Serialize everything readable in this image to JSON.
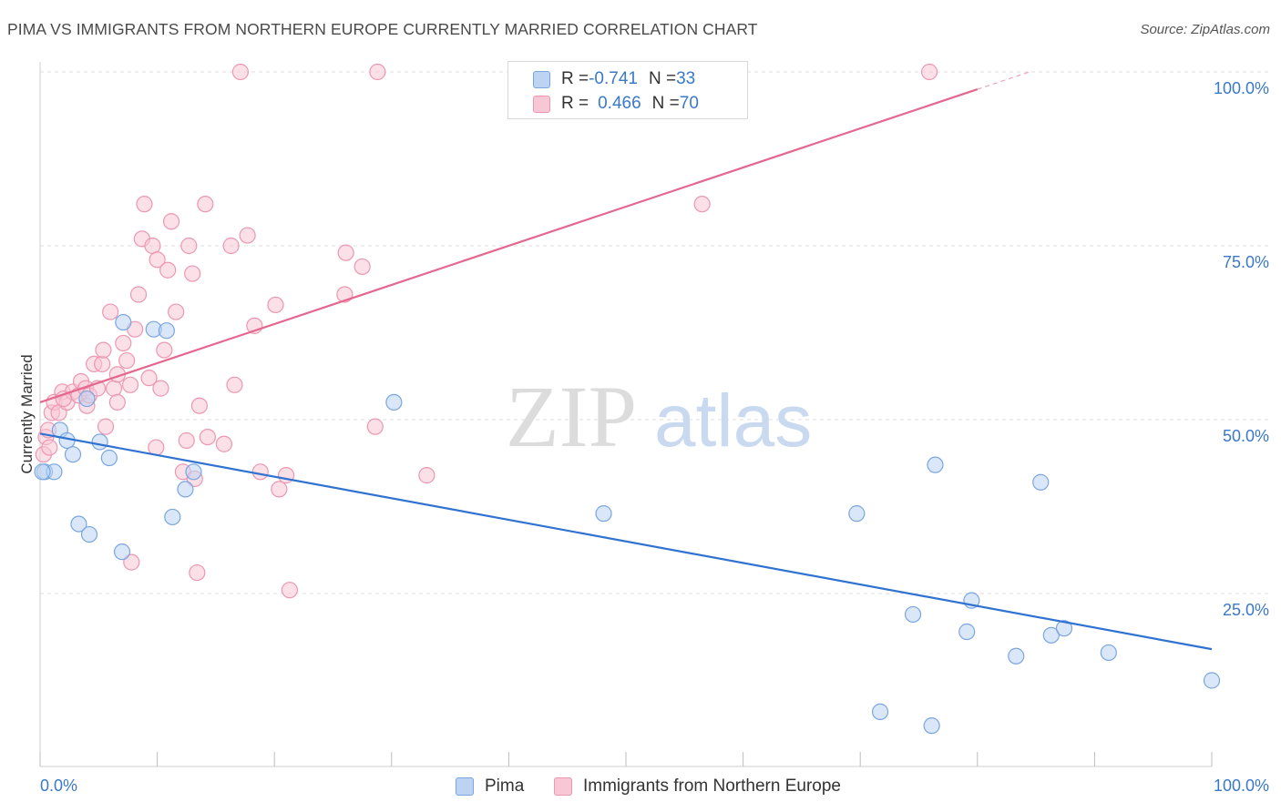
{
  "title": "PIMA VS IMMIGRANTS FROM NORTHERN EUROPE CURRENTLY MARRIED CORRELATION CHART",
  "source": "Source: ZipAtlas.com",
  "watermark": {
    "zip": "ZIP",
    "atlas": "atlas"
  },
  "legend": {
    "rows": [
      {
        "r_label": "R = ",
        "r_value": "-0.741",
        "n_label": "N = ",
        "n_value": "33"
      },
      {
        "r_label": "R = ",
        "r_value": "0.466",
        "n_label": "N = ",
        "n_value": "70"
      }
    ]
  },
  "bottom_legend": {
    "series1": "Pima",
    "series2": "Immigrants from Northern Europe"
  },
  "colors": {
    "pima_fill": "#bcd3f2",
    "pima_stroke": "#7aa6e0",
    "pima_line": "#2f72d1",
    "imm_fill": "#f8c7d6",
    "imm_stroke": "#ec97b1",
    "imm_line": "#e4678f",
    "tick_text": "#3a78c9"
  },
  "chart_data": {
    "type": "scatter",
    "title": "PIMA VS IMMIGRANTS FROM NORTHERN EUROPE CURRENTLY MARRIED CORRELATION CHART",
    "xlabel": "",
    "ylabel": "Currently Married",
    "xlim": [
      0,
      100
    ],
    "ylim": [
      3,
      101
    ],
    "x_tick_labels": [
      "0.0%",
      "100.0%"
    ],
    "y_ticks": [
      25,
      50,
      75,
      100
    ],
    "y_tick_labels": [
      "25.0%",
      "50.0%",
      "75.0%",
      "100.0%"
    ],
    "grid": true,
    "legend_position": "top-center",
    "series": [
      {
        "name": "Pima",
        "r": -0.741,
        "n": 33,
        "trend": {
          "x0": 0,
          "y0": 48.0,
          "x1": 100,
          "y1": 17.0
        },
        "points": [
          [
            0.4,
            42.5
          ],
          [
            1.2,
            42.5
          ],
          [
            1.7,
            48.5
          ],
          [
            2.3,
            47.0
          ],
          [
            2.8,
            45.0
          ],
          [
            3.3,
            35.0
          ],
          [
            4.2,
            33.5
          ],
          [
            4.0,
            53.0
          ],
          [
            5.1,
            46.8
          ],
          [
            5.9,
            44.5
          ],
          [
            7.1,
            64.0
          ],
          [
            7.0,
            31.0
          ],
          [
            9.7,
            63.0
          ],
          [
            10.8,
            62.8
          ],
          [
            11.3,
            36.0
          ],
          [
            12.4,
            40.0
          ],
          [
            13.1,
            42.5
          ],
          [
            30.2,
            52.5
          ],
          [
            48.1,
            36.5
          ],
          [
            69.7,
            36.5
          ],
          [
            76.4,
            43.5
          ],
          [
            74.5,
            22.0
          ],
          [
            79.5,
            24.0
          ],
          [
            79.1,
            19.5
          ],
          [
            85.4,
            41.0
          ],
          [
            83.3,
            16.0
          ],
          [
            86.3,
            19.0
          ],
          [
            87.4,
            20.0
          ],
          [
            91.2,
            16.5
          ],
          [
            100.0,
            12.5
          ],
          [
            71.7,
            8.0
          ],
          [
            76.1,
            6.0
          ],
          [
            0.2,
            42.5
          ]
        ]
      },
      {
        "name": "Immigrants from Northern Europe",
        "r": 0.466,
        "n": 70,
        "trend": {
          "x0": 0,
          "y0": 52.5,
          "x1": 80,
          "y1": 97.5
        },
        "points": [
          [
            0.3,
            45.0
          ],
          [
            0.5,
            47.5
          ],
          [
            0.7,
            48.5
          ],
          [
            1.0,
            51.0
          ],
          [
            1.2,
            52.5
          ],
          [
            1.6,
            51.0
          ],
          [
            1.9,
            54.0
          ],
          [
            2.3,
            52.5
          ],
          [
            2.8,
            54.0
          ],
          [
            3.3,
            53.5
          ],
          [
            3.5,
            55.5
          ],
          [
            3.9,
            54.5
          ],
          [
            4.0,
            52.0
          ],
          [
            4.2,
            53.5
          ],
          [
            4.6,
            58.0
          ],
          [
            4.9,
            54.5
          ],
          [
            5.3,
            58.0
          ],
          [
            5.4,
            60.0
          ],
          [
            5.6,
            49.0
          ],
          [
            6.0,
            65.5
          ],
          [
            6.3,
            54.5
          ],
          [
            6.6,
            52.5
          ],
          [
            6.6,
            56.5
          ],
          [
            7.1,
            61.0
          ],
          [
            7.4,
            58.5
          ],
          [
            7.7,
            55.0
          ],
          [
            7.8,
            29.5
          ],
          [
            8.1,
            63.0
          ],
          [
            8.4,
            68.0
          ],
          [
            8.7,
            76.0
          ],
          [
            8.9,
            81.0
          ],
          [
            9.3,
            56.0
          ],
          [
            9.6,
            75.0
          ],
          [
            9.9,
            46.0
          ],
          [
            10.0,
            73.0
          ],
          [
            10.3,
            54.5
          ],
          [
            10.6,
            60.0
          ],
          [
            10.9,
            71.5
          ],
          [
            11.2,
            78.5
          ],
          [
            11.6,
            65.5
          ],
          [
            12.2,
            42.5
          ],
          [
            12.5,
            47.0
          ],
          [
            12.7,
            75.0
          ],
          [
            13.0,
            71.0
          ],
          [
            13.2,
            41.5
          ],
          [
            13.4,
            28.0
          ],
          [
            13.6,
            52.0
          ],
          [
            14.1,
            81.0
          ],
          [
            14.3,
            47.5
          ],
          [
            15.7,
            46.5
          ],
          [
            16.3,
            75.0
          ],
          [
            16.6,
            55.0
          ],
          [
            17.1,
            100.0
          ],
          [
            17.7,
            76.5
          ],
          [
            18.3,
            63.5
          ],
          [
            18.8,
            42.5
          ],
          [
            20.1,
            66.5
          ],
          [
            20.4,
            40.0
          ],
          [
            21.0,
            42.0
          ],
          [
            21.3,
            25.5
          ],
          [
            26.0,
            68.0
          ],
          [
            26.1,
            74.0
          ],
          [
            27.5,
            72.0
          ],
          [
            28.6,
            49.0
          ],
          [
            28.8,
            100.0
          ],
          [
            33.0,
            42.0
          ],
          [
            56.5,
            81.0
          ],
          [
            75.9,
            100.0
          ],
          [
            0.8,
            46.0
          ],
          [
            2.0,
            53.0
          ]
        ]
      }
    ]
  }
}
